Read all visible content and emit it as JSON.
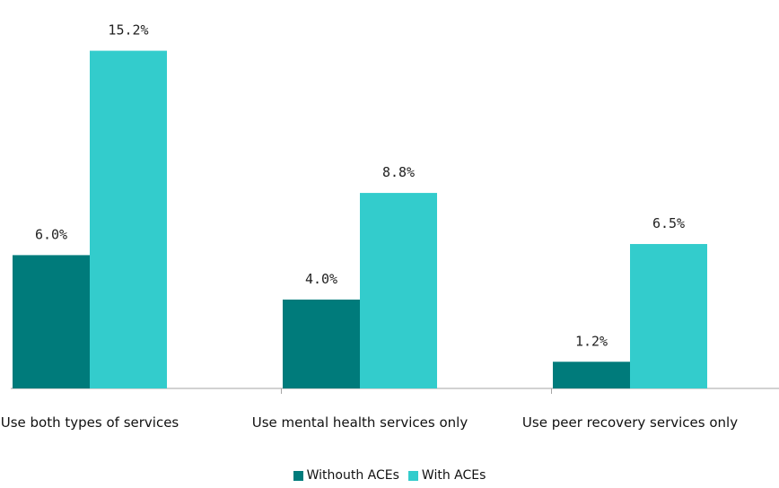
{
  "chart_data": {
    "type": "bar",
    "categories": [
      "Use both types of services",
      "Use mental health services only",
      "Use peer recovery services only"
    ],
    "series": [
      {
        "name": "Withouth ACEs",
        "values": [
          6.0,
          4.0,
          1.2
        ],
        "labels": [
          "6.0%",
          "4.0%",
          "1.2%"
        ],
        "color": "#007b7b"
      },
      {
        "name": "With ACEs",
        "values": [
          15.2,
          8.8,
          6.5
        ],
        "labels": [
          "15.2%",
          "8.8%",
          "6.5%"
        ],
        "color": "#33cccc"
      }
    ],
    "ylim": [
      0,
      17
    ],
    "grid": false,
    "legend": "bottom",
    "title": "",
    "xlabel": "",
    "ylabel": ""
  }
}
